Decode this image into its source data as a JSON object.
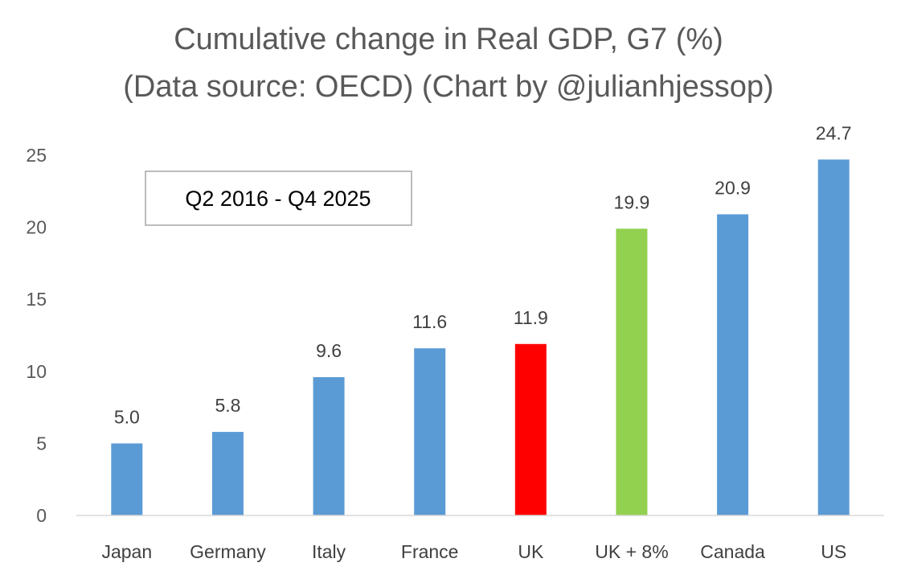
{
  "chart_data": {
    "type": "bar",
    "title": "Cumulative change in Real GDP, G7 (%)",
    "subtitle": "(Data source: OECD) (Chart by @julianhjessop)",
    "annotation": "Q2 2016 - Q4 2025",
    "categories": [
      "Japan",
      "Germany",
      "Italy",
      "France",
      "UK",
      "UK + 8%",
      "Canada",
      "US"
    ],
    "values": [
      5.0,
      5.8,
      9.6,
      11.6,
      11.9,
      19.9,
      20.9,
      24.7
    ],
    "data_labels": [
      "5.0",
      "5.8",
      "9.6",
      "11.6",
      "11.9",
      "19.9",
      "20.9",
      "24.7"
    ],
    "colors": [
      "#5b9bd5",
      "#5b9bd5",
      "#5b9bd5",
      "#5b9bd5",
      "#ff0000",
      "#92d050",
      "#5b9bd5",
      "#5b9bd5"
    ],
    "yticks": [
      0,
      5,
      10,
      15,
      20,
      25
    ],
    "ylim": [
      0,
      25
    ],
    "xlabel": "",
    "ylabel": "",
    "grid": false,
    "axis_color": "#d9d9d9"
  }
}
